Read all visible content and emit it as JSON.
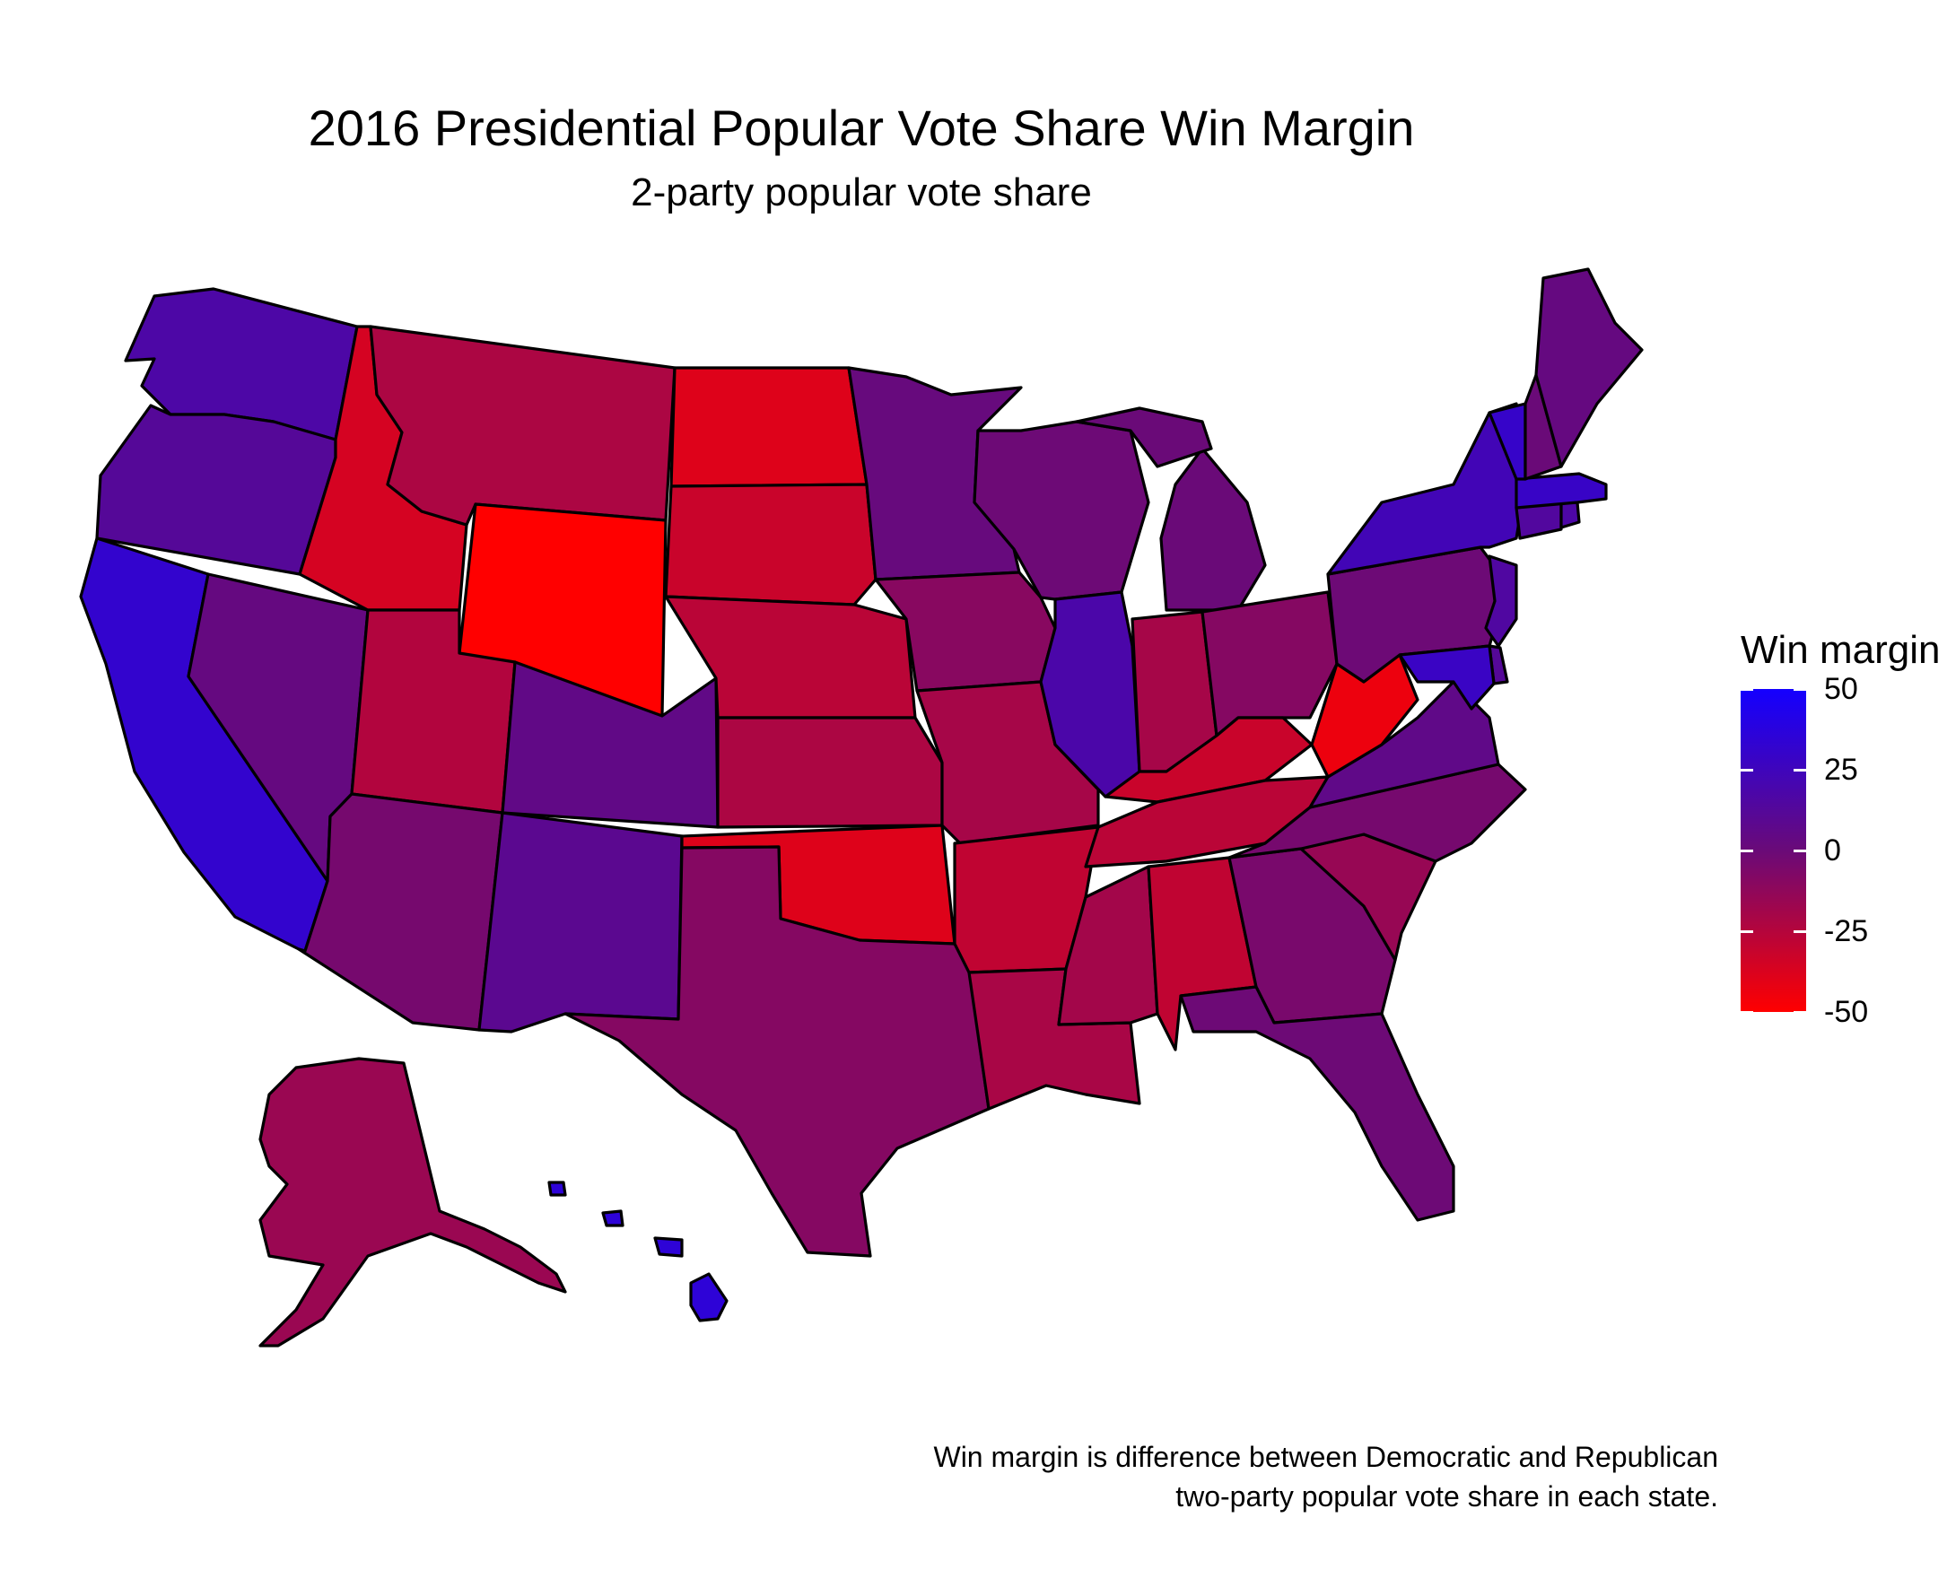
{
  "title": "2016 Presidential Popular Vote Share Win Margin",
  "subtitle": "2-party popular vote share",
  "legend": {
    "title": "Win margin",
    "ticks": [
      "50",
      "25",
      "0",
      "-25",
      "-50"
    ],
    "tick_values": [
      50,
      25,
      0,
      -25,
      -50
    ],
    "range": [
      -50,
      50
    ],
    "color_low": "#ff0000",
    "color_mid": "#6a0a78",
    "color_high": "#1400ff"
  },
  "caption": {
    "line1": "Win margin is difference between Democratic and Republican",
    "line2": "two-party popular vote share in each state."
  },
  "states": [
    {
      "id": "WA",
      "margin": 17
    },
    {
      "id": "OR",
      "margin": 12
    },
    {
      "id": "CA",
      "margin": 32
    },
    {
      "id": "NV",
      "margin": 3
    },
    {
      "id": "ID",
      "margin": -36
    },
    {
      "id": "MT",
      "margin": -22
    },
    {
      "id": "WY",
      "margin": -52
    },
    {
      "id": "UT",
      "margin": -24
    },
    {
      "id": "AZ",
      "margin": -4
    },
    {
      "id": "CO",
      "margin": 5
    },
    {
      "id": "NM",
      "margin": 9
    },
    {
      "id": "ND",
      "margin": -39
    },
    {
      "id": "SD",
      "margin": -32
    },
    {
      "id": "NE",
      "margin": -27
    },
    {
      "id": "KS",
      "margin": -22
    },
    {
      "id": "OK",
      "margin": -39
    },
    {
      "id": "TX",
      "margin": -9
    },
    {
      "id": "MN",
      "margin": 2
    },
    {
      "id": "IA",
      "margin": -10
    },
    {
      "id": "MO",
      "margin": -20
    },
    {
      "id": "AR",
      "margin": -29
    },
    {
      "id": "LA",
      "margin": -21
    },
    {
      "id": "WI",
      "margin": -1
    },
    {
      "id": "IL",
      "margin": 18
    },
    {
      "id": "MI",
      "margin": 0
    },
    {
      "id": "IN",
      "margin": -20
    },
    {
      "id": "OH",
      "margin": -9
    },
    {
      "id": "KY",
      "margin": -32
    },
    {
      "id": "TN",
      "margin": -27
    },
    {
      "id": "MS",
      "margin": -19
    },
    {
      "id": "AL",
      "margin": -29
    },
    {
      "id": "GA",
      "margin": -5
    },
    {
      "id": "FL",
      "margin": -1
    },
    {
      "id": "SC",
      "margin": -15
    },
    {
      "id": "NC",
      "margin": -4
    },
    {
      "id": "VA",
      "margin": 6
    },
    {
      "id": "WV",
      "margin": -44
    },
    {
      "id": "PA",
      "margin": -1
    },
    {
      "id": "NY",
      "margin": 23
    },
    {
      "id": "NJ",
      "margin": 15
    },
    {
      "id": "DE",
      "margin": 12
    },
    {
      "id": "MD",
      "margin": 28
    },
    {
      "id": "CT",
      "margin": 14
    },
    {
      "id": "RI",
      "margin": 17
    },
    {
      "id": "MA",
      "margin": 29
    },
    {
      "id": "VT",
      "margin": 30
    },
    {
      "id": "NH",
      "margin": 0
    },
    {
      "id": "ME",
      "margin": 3
    },
    {
      "id": "AK",
      "margin": -16
    },
    {
      "id": "HI",
      "margin": 35
    }
  ]
}
